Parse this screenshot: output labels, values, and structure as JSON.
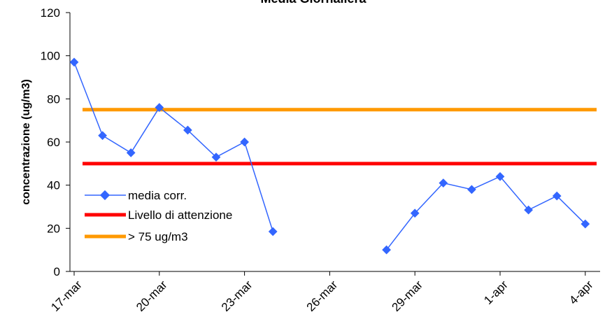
{
  "chart_data": {
    "type": "line",
    "title": "Media Giornaliera",
    "xlabel": "",
    "ylabel": "concentrazione (ug/m3)",
    "ylim": [
      0,
      120
    ],
    "yticks": [
      "0",
      "20",
      "40",
      "60",
      "80",
      "100",
      "120"
    ],
    "xticks": [
      "17-mar",
      "20-mar",
      "23-mar",
      "26-mar",
      "29-mar",
      "1-apr",
      "4-apr"
    ],
    "grid": false,
    "legend_position": "center-left",
    "series": [
      {
        "name": "media corr.",
        "color": "#3366FF",
        "marker": "diamond",
        "x": [
          "17-mar",
          "18-mar",
          "19-mar",
          "20-mar",
          "21-mar",
          "22-mar",
          "23-mar",
          "24-mar",
          "25-mar",
          "26-mar",
          "27-mar",
          "28-mar",
          "29-mar",
          "30-mar",
          "31-mar",
          "1-apr",
          "2-apr",
          "3-apr",
          "4-apr"
        ],
        "values": [
          97,
          63,
          55,
          76,
          65.5,
          53,
          60,
          18.5,
          null,
          null,
          null,
          10,
          27,
          41,
          38,
          44,
          28.5,
          35,
          22
        ]
      },
      {
        "name": "Livello di attenzione",
        "color": "#FF0000",
        "constant": 50
      },
      {
        "name": "> 75 ug/m3",
        "color": "#FF9900",
        "constant": 75
      }
    ]
  }
}
